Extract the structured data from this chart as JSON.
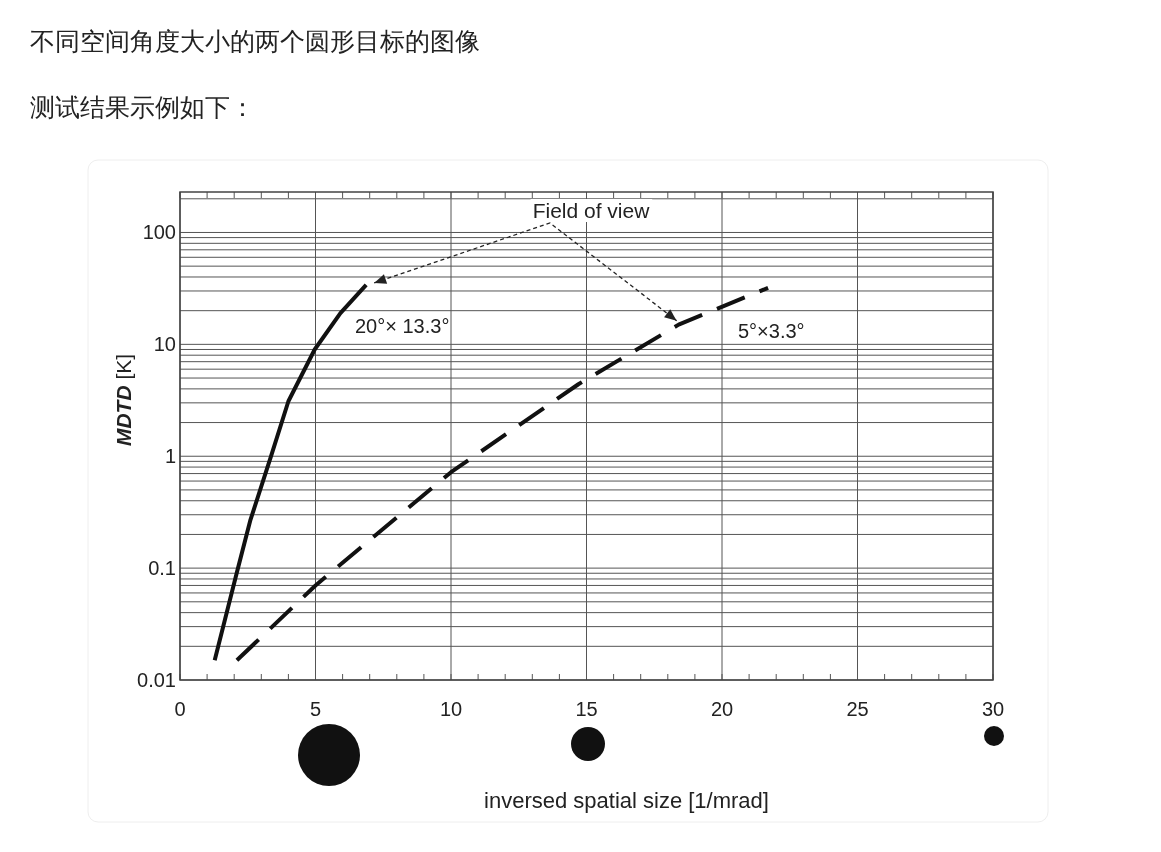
{
  "chart_data": {
    "type": "line",
    "title": "不同空间角度大小的两个圆形目标的图像",
    "subtitle": "测试结果示例如下：",
    "xlabel": "inversed spatial size [1/mrad]",
    "ylabel": "*MDTD* [K]",
    "log": "y",
    "grid": true,
    "xlim": [
      0,
      30
    ],
    "xticks": [
      0,
      5,
      10,
      15,
      20,
      25,
      30
    ],
    "ylim": [
      0.01,
      230
    ],
    "yticks": [
      {
        "value": 0.01,
        "label": "0.01"
      },
      {
        "value": 0.1,
        "label": "0.1"
      },
      1,
      10,
      100
    ],
    "series": [
      {
        "color": "#111111",
        "line_style": "solid",
        "x": [
          1.28,
          2.1,
          2.6,
          3.36,
          4.0,
          4.97,
          5.92,
          6.87
        ],
        "values": [
          0.015,
          0.092,
          0.27,
          1,
          3.1,
          9,
          19,
          34
        ]
      },
      {
        "color": "#111111",
        "line_style": "dashed",
        "x": [
          2.1,
          5,
          10,
          14.7,
          18.4,
          21.7
        ],
        "values": [
          0.015,
          0.07,
          0.72,
          4.4,
          15,
          32
        ]
      }
    ],
    "annotations": [
      "Field of view",
      "20°× 13.3°",
      "5°×3.3°"
    ]
  }
}
